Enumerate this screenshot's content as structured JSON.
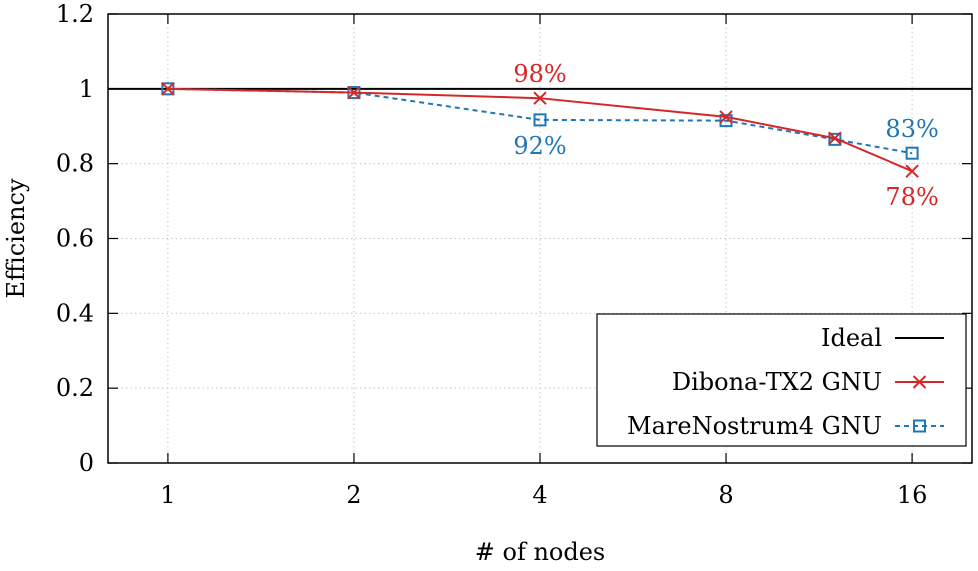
{
  "chart_data": {
    "type": "line",
    "title": "",
    "xlabel": "# of nodes",
    "ylabel": "Efficiency",
    "categories": [
      "1",
      "2",
      "4",
      "8",
      "16"
    ],
    "ylim": [
      0,
      1.2
    ],
    "yticks": [
      "0",
      "0.2",
      "0.4",
      "0.6",
      "0.8",
      "1",
      "1.2"
    ],
    "grid": true,
    "legend_position": "bottom-right",
    "series": [
      {
        "name": "Ideal",
        "color": "#000000",
        "marker": "none",
        "dash": "solid",
        "x": [
          0.8,
          1,
          2,
          4,
          8,
          16,
          20
        ],
        "values": [
          1,
          1,
          1,
          1,
          1,
          1,
          1
        ]
      },
      {
        "name": "Dibona-TX2 GNU",
        "color": "#d62728",
        "marker": "cross",
        "dash": "solid",
        "x": [
          1,
          2,
          4,
          8,
          12,
          16
        ],
        "values": [
          1.0,
          0.99,
          0.975,
          0.925,
          0.868,
          0.78
        ]
      },
      {
        "name": "MareNostrum4 GNU",
        "color": "#1f77b4",
        "marker": "square",
        "dash": "dashed",
        "x": [
          1,
          2,
          4,
          8,
          12,
          16
        ],
        "values": [
          1.0,
          0.99,
          0.917,
          0.915,
          0.865,
          0.828
        ]
      }
    ],
    "annotations": [
      {
        "text": "98%",
        "series": "Dibona-TX2 GNU",
        "x": 4,
        "y": 0.975,
        "placement": "above",
        "color": "#d62728"
      },
      {
        "text": "92%",
        "series": "MareNostrum4 GNU",
        "x": 4,
        "y": 0.917,
        "placement": "below",
        "color": "#1f77b4"
      },
      {
        "text": "83%",
        "series": "MareNostrum4 GNU",
        "x": 16,
        "y": 0.828,
        "placement": "above",
        "color": "#1f77b4"
      },
      {
        "text": "78%",
        "series": "Dibona-TX2 GNU",
        "x": 16,
        "y": 0.78,
        "placement": "below",
        "color": "#d62728"
      }
    ]
  }
}
